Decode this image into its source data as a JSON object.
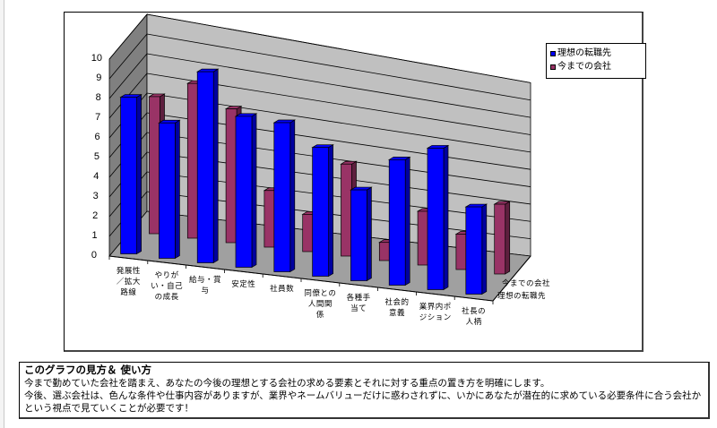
{
  "chart_data": {
    "type": "bar",
    "variant": "3d-clustered-column",
    "title": "",
    "xlabel": "",
    "ylabel": "",
    "ylim": [
      0,
      10
    ],
    "yticks": [
      0,
      1,
      2,
      3,
      4,
      5,
      6,
      7,
      8,
      9,
      10
    ],
    "grid": true,
    "legend_position": "right-top",
    "categories": [
      "発展性／拡大路線",
      "やりがい・自己の成長",
      "給与・賞与",
      "安定性",
      "社員数",
      "同僚との人間関係",
      "各種手当て",
      "社会的意義",
      "業界内ポジション",
      "社長の人柄"
    ],
    "category_labels_wrapped": [
      "発展性\n／拡大\n路線",
      "やりが\nい・自己\nの成長",
      "給与・賞\n与",
      "安定性",
      "社員数",
      "同僚との\n人間関\n係",
      "各種手\n当て",
      "社会的\n意義",
      "業界内ポ\nジション",
      "社長の\n人柄"
    ],
    "series": [
      {
        "name": "理想の転職先",
        "color": "#0000FF",
        "side_color": "#0000A0",
        "values": [
          8,
          7,
          10,
          8,
          8,
          7,
          5,
          7,
          8,
          5
        ]
      },
      {
        "name": "今までの会社",
        "color": "#993366",
        "side_color": "#5E1F3E",
        "values": [
          7,
          8,
          7,
          3,
          2,
          5,
          1,
          3,
          2,
          4
        ]
      }
    ],
    "depth_axis_labels": [
      "今までの会社",
      "理想の転職先"
    ]
  },
  "legend": {
    "items": [
      {
        "label": "理想の転職先",
        "color": "#0000FF"
      },
      {
        "label": "今までの会社",
        "color": "#993366"
      }
    ]
  },
  "note": {
    "title": "このグラフの見方＆ 使い方",
    "line1": "今まで勤めていた会社を踏まえ、あなたの今後の理想とする会社の求める要素とそれに対する重点の置き方を明確にします。",
    "line2": "今後、選ぶ会社は、色んな条件や仕事内容がありますが、業界やネームバリューだけに惑わされずに、いかにあなたが潜在的に求めている必要条件に合う会社かという視点で見ていくことが必要です！"
  },
  "colors": {
    "wall": "#C0C0C0",
    "side_wall": "#808080",
    "floor": "#A0A0A0"
  }
}
